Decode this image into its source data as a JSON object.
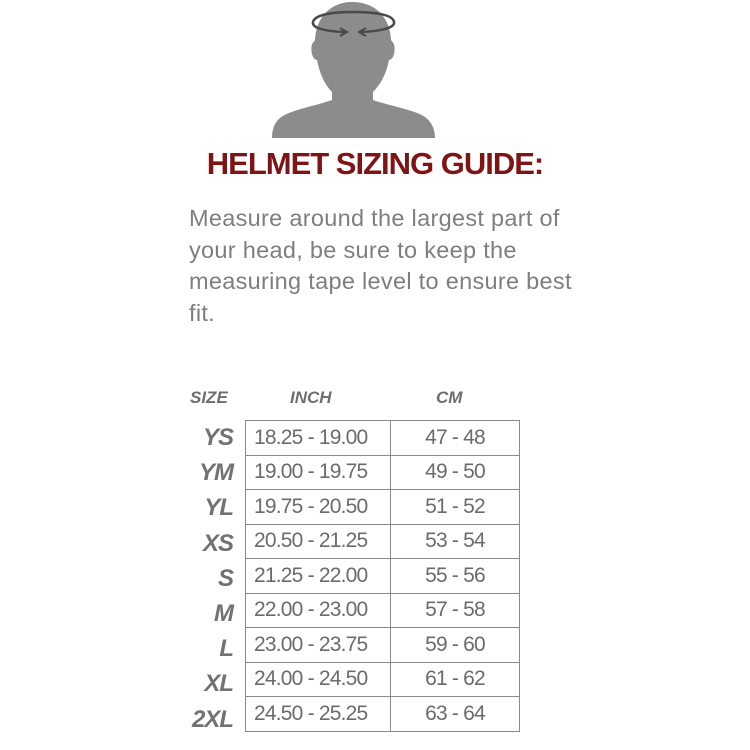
{
  "title": "HELMET SIZING GUIDE:",
  "instructions": "Measure around the largest part of your head, be sure to keep the measuring tape level to ensure best fit.",
  "colors": {
    "title": "#7f1416",
    "figure": "#8c8c8c",
    "text": "#7e7e7e"
  },
  "table": {
    "headers": {
      "size": "SIZE",
      "inch": "INCH",
      "cm": "CM"
    },
    "rows": [
      {
        "size": "YS",
        "inch": "18.25 - 19.00",
        "cm": "47 - 48"
      },
      {
        "size": "YM",
        "inch": "19.00 - 19.75",
        "cm": "49 - 50"
      },
      {
        "size": "YL",
        "inch": "19.75 - 20.50",
        "cm": "51 - 52"
      },
      {
        "size": "XS",
        "inch": "20.50 - 21.25",
        "cm": "53 - 54"
      },
      {
        "size": "S",
        "inch": "21.25 - 22.00",
        "cm": "55 - 56"
      },
      {
        "size": "M",
        "inch": "22.00 - 23.00",
        "cm": "57 - 58"
      },
      {
        "size": "L",
        "inch": "23.00 - 23.75",
        "cm": "59 - 60"
      },
      {
        "size": "XL",
        "inch": "24.00 - 24.50",
        "cm": "61 - 62"
      },
      {
        "size": "2XL",
        "inch": "24.50 - 25.25",
        "cm": "63 - 64"
      }
    ]
  }
}
